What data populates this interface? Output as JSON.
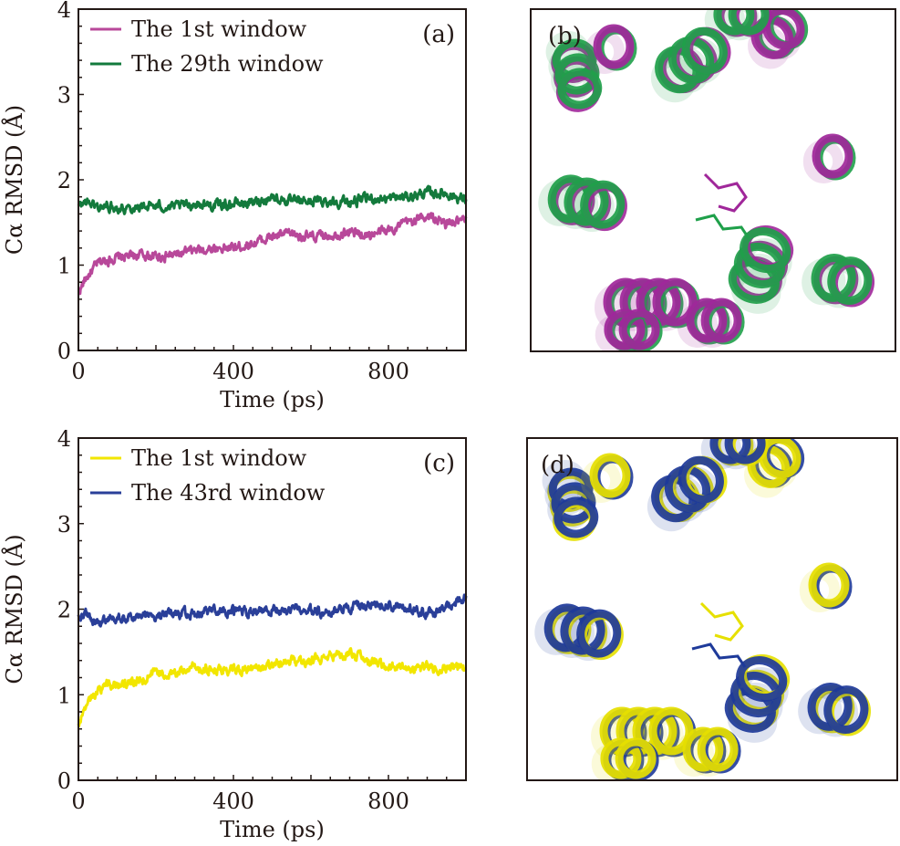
{
  "chart_data": [
    {
      "type": "line",
      "panel": "(a)",
      "xlabel": "Time (ps)",
      "ylabel": "Cα RMSD (Å)",
      "xlim": [
        0,
        1000
      ],
      "ylim": [
        0,
        4
      ],
      "xticks": [
        0,
        400,
        800
      ],
      "yticks": [
        0,
        1,
        2,
        3,
        4
      ],
      "grid": false,
      "legend_position": "upper left",
      "series": [
        {
          "name": "The 1st window",
          "color": "#b8489a",
          "x": [
            0,
            20,
            50,
            80,
            120,
            160,
            200,
            250,
            300,
            350,
            400,
            450,
            500,
            550,
            600,
            650,
            700,
            750,
            800,
            850,
            900,
            950,
            1000
          ],
          "values": [
            0.68,
            0.85,
            1.02,
            1.07,
            1.1,
            1.12,
            1.1,
            1.12,
            1.17,
            1.2,
            1.2,
            1.26,
            1.33,
            1.37,
            1.32,
            1.36,
            1.39,
            1.35,
            1.41,
            1.5,
            1.58,
            1.48,
            1.52
          ]
        },
        {
          "name": "The 29th window",
          "color": "#137a3c",
          "x": [
            0,
            20,
            50,
            80,
            120,
            160,
            200,
            250,
            300,
            350,
            400,
            450,
            500,
            550,
            600,
            650,
            700,
            750,
            800,
            850,
            900,
            950,
            1000
          ],
          "values": [
            1.68,
            1.75,
            1.68,
            1.69,
            1.67,
            1.69,
            1.69,
            1.68,
            1.72,
            1.7,
            1.72,
            1.73,
            1.8,
            1.74,
            1.75,
            1.75,
            1.74,
            1.78,
            1.78,
            1.8,
            1.85,
            1.84,
            1.76
          ]
        }
      ]
    },
    {
      "type": "line",
      "panel": "(c)",
      "xlabel": "Time (ps)",
      "ylabel": "Cα RMSD (Å)",
      "xlim": [
        0,
        1000
      ],
      "ylim": [
        0,
        4
      ],
      "xticks": [
        0,
        400,
        800
      ],
      "yticks": [
        0,
        1,
        2,
        3,
        4
      ],
      "grid": false,
      "legend_position": "upper left",
      "series": [
        {
          "name": "The 1st window",
          "color": "#f2e600",
          "x": [
            0,
            20,
            50,
            80,
            120,
            160,
            200,
            250,
            300,
            350,
            400,
            450,
            500,
            550,
            600,
            650,
            700,
            750,
            800,
            850,
            900,
            950,
            1000
          ],
          "values": [
            0.65,
            0.9,
            1.05,
            1.12,
            1.13,
            1.17,
            1.25,
            1.23,
            1.33,
            1.28,
            1.28,
            1.3,
            1.33,
            1.4,
            1.4,
            1.45,
            1.48,
            1.38,
            1.34,
            1.32,
            1.31,
            1.32,
            1.3
          ]
        },
        {
          "name": "The 43rd window",
          "color": "#2a3f99",
          "x": [
            0,
            20,
            50,
            80,
            120,
            160,
            200,
            250,
            300,
            350,
            400,
            450,
            500,
            550,
            600,
            650,
            700,
            750,
            800,
            850,
            900,
            950,
            1000
          ],
          "values": [
            1.93,
            1.92,
            1.85,
            1.88,
            1.9,
            1.92,
            1.94,
            1.95,
            1.95,
            1.97,
            1.97,
            1.97,
            1.97,
            2.0,
            1.98,
            1.97,
            2.03,
            2.05,
            2.04,
            2.0,
            1.95,
            2.02,
            2.12
          ]
        }
      ]
    }
  ],
  "panels": {
    "a": {
      "label": "(a)"
    },
    "b": {
      "label": "(b)",
      "description": "Superposed protein helix structures, magenta (1st window) vs green (29th window)",
      "colors": [
        "#a0279a",
        "#1fa04a"
      ]
    },
    "c": {
      "label": "(c)"
    },
    "d": {
      "label": "(d)",
      "description": "Superposed protein helix structures, yellow (1st window) vs blue (43rd window)",
      "colors": [
        "#e6e000",
        "#1e3a9a"
      ]
    }
  },
  "axis_text": {
    "xlabel": "Time (ps)",
    "ylabel": "Cα RMSD (Å)",
    "xtick_labels": [
      "0",
      "400",
      "800"
    ],
    "ytick_labels": [
      "0",
      "1",
      "2",
      "3",
      "4"
    ]
  }
}
